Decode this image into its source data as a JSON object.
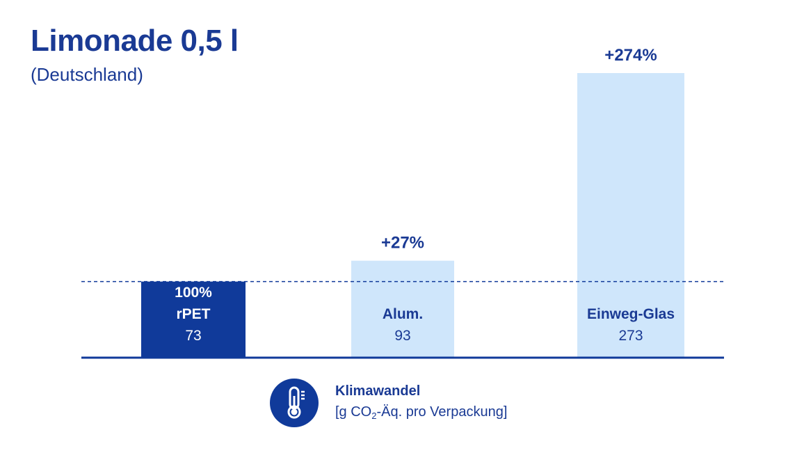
{
  "header": {
    "title": "Limonade 0,5 l",
    "subtitle": "(Deutschland)"
  },
  "legend": {
    "title": "Klimawandel",
    "unit_prefix": "[g CO",
    "unit_sub": "2",
    "unit_suffix": "-Äq. pro Verpackung]",
    "icon": "thermometer-icon"
  },
  "colors": {
    "dark_blue": "#103a9a",
    "light_blue": "#cfe6fb",
    "text_blue": "#1a3a94"
  },
  "chart_data": {
    "type": "bar",
    "categories": [
      "100%\nrPET",
      "Alum.",
      "Einweg-Glas"
    ],
    "values": [
      73,
      93,
      273
    ],
    "changes": [
      "",
      "+27%",
      "+274%"
    ],
    "reference_value": 73,
    "highlight_index": 0,
    "title": "Limonade 0,5 l",
    "subtitle": "(Deutschland)",
    "xlabel": "",
    "ylabel": "",
    "grid": false,
    "ylim": [
      0,
      273
    ]
  }
}
